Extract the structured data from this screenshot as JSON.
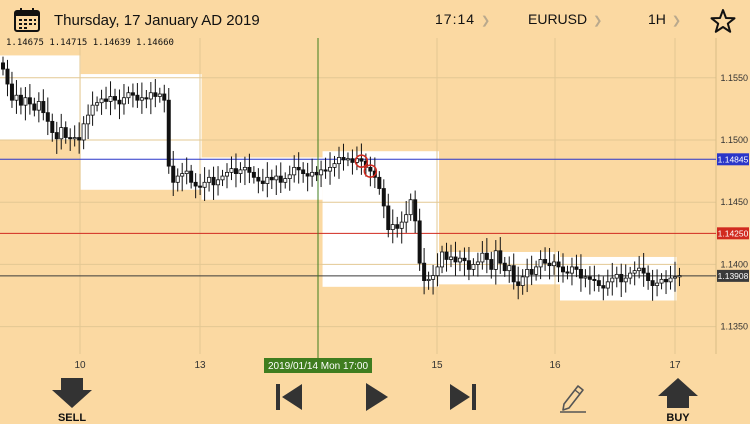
{
  "header": {
    "date": "Thursday, 17 January AD 2019",
    "time": "17:14",
    "symbol": "EURUSD",
    "timeframe": "1H"
  },
  "ohlc_readout": "1.14675 1.14715 1.14639 1.14660",
  "colors": {
    "background": "#fbd9a2",
    "session_box": "#ffffff",
    "blue_line": "#2a36c9",
    "red_line": "#d12a1f",
    "cursor_line": "#3f7d1f",
    "price_tag_dark": "#3a3a3a",
    "date_tag": "#3f7d1f"
  },
  "chart_data": {
    "type": "candlestick",
    "x_tick_labels": [
      "10",
      "13",
      "15",
      "16",
      "17"
    ],
    "y_tick_labels": [
      "1.1550",
      "1.1500",
      "1.1450",
      "1.1400",
      "1.1350"
    ],
    "y_ticks": [
      1.155,
      1.15,
      1.145,
      1.14,
      1.135
    ],
    "ylim": [
      1.1328,
      1.1582
    ],
    "horizontal_lines": [
      {
        "price": 1.14845,
        "label": "1.14845",
        "color": "#2a36c9"
      },
      {
        "price": 1.1425,
        "label": "1.14250",
        "color": "#d12a1f"
      },
      {
        "price": 1.13908,
        "label": "1.13908",
        "color": "#3a3a3a"
      }
    ],
    "cursor_label": "2019/01/14 Mon 17:00",
    "sessions": [
      {
        "start": 0,
        "end": 18,
        "high": 1.1568,
        "low": 1.15
      },
      {
        "start": 18,
        "end": 45,
        "high": 1.1553,
        "low": 1.146
      },
      {
        "start": 45,
        "end": 72,
        "high": 1.1486,
        "low": 1.1452
      },
      {
        "start": 72,
        "end": 98,
        "high": 1.1491,
        "low": 1.1382
      },
      {
        "start": 98,
        "end": 125,
        "high": 1.141,
        "low": 1.1384
      },
      {
        "start": 125,
        "end": 151,
        "high": 1.1406,
        "low": 1.1371
      }
    ],
    "close_series": [
      1.1557,
      1.1545,
      1.1532,
      1.1536,
      1.1528,
      1.1534,
      1.1529,
      1.1524,
      1.1531,
      1.1522,
      1.1515,
      1.1506,
      1.1501,
      1.151,
      1.1502,
      1.1501,
      1.1502,
      1.15,
      1.1513,
      1.152,
      1.1528,
      1.153,
      1.1533,
      1.1531,
      1.1535,
      1.1532,
      1.1529,
      1.1534,
      1.1538,
      1.1536,
      1.1532,
      1.1534,
      1.1533,
      1.1538,
      1.1535,
      1.1537,
      1.1532,
      1.1479,
      1.1466,
      1.1471,
      1.1473,
      1.1475,
      1.1466,
      1.1463,
      1.1462,
      1.1466,
      1.147,
      1.1464,
      1.1468,
      1.1471,
      1.1474,
      1.1477,
      1.1473,
      1.1476,
      1.1478,
      1.1474,
      1.147,
      1.1467,
      1.1465,
      1.147,
      1.1468,
      1.1471,
      1.1466,
      1.1469,
      1.1472,
      1.1478,
      1.1476,
      1.1473,
      1.1471,
      1.1474,
      1.1472,
      1.1476,
      1.1475,
      1.1478,
      1.1481,
      1.1486,
      1.1484,
      1.1485,
      1.1482,
      1.1485,
      1.1483,
      1.1478,
      1.1475,
      1.147,
      1.1461,
      1.1447,
      1.1428,
      1.1432,
      1.1429,
      1.1434,
      1.144,
      1.1452,
      1.1435,
      1.1401,
      1.1387,
      1.1388,
      1.1391,
      1.1398,
      1.141,
      1.1404,
      1.1406,
      1.1402,
      1.1405,
      1.1403,
      1.1396,
      1.14,
      1.1402,
      1.1409,
      1.1404,
      1.1396,
      1.1411,
      1.1401,
      1.1395,
      1.1399,
      1.1386,
      1.1383,
      1.139,
      1.1396,
      1.1392,
      1.1398,
      1.1404,
      1.1401,
      1.1399,
      1.1402,
      1.1398,
      1.1394,
      1.1393,
      1.1398,
      1.1396,
      1.1389,
      1.139,
      1.1388,
      1.1387,
      1.1383,
      1.1381,
      1.1386,
      1.1389,
      1.1392,
      1.1386,
      1.1389,
      1.1393,
      1.1395,
      1.1397,
      1.1393,
      1.1387,
      1.1383,
      1.1385,
      1.1388,
      1.1386,
      1.1389,
      1.139,
      1.1391
    ],
    "circled_candles": [
      80,
      82
    ]
  },
  "toolbar": {
    "sell_label": "SELL",
    "buy_label": "BUY"
  },
  "icons": [
    "calendar-icon",
    "star-icon",
    "sell-arrow-icon",
    "step-back-icon",
    "play-icon",
    "step-forward-icon",
    "pencil-icon",
    "buy-arrow-icon"
  ]
}
